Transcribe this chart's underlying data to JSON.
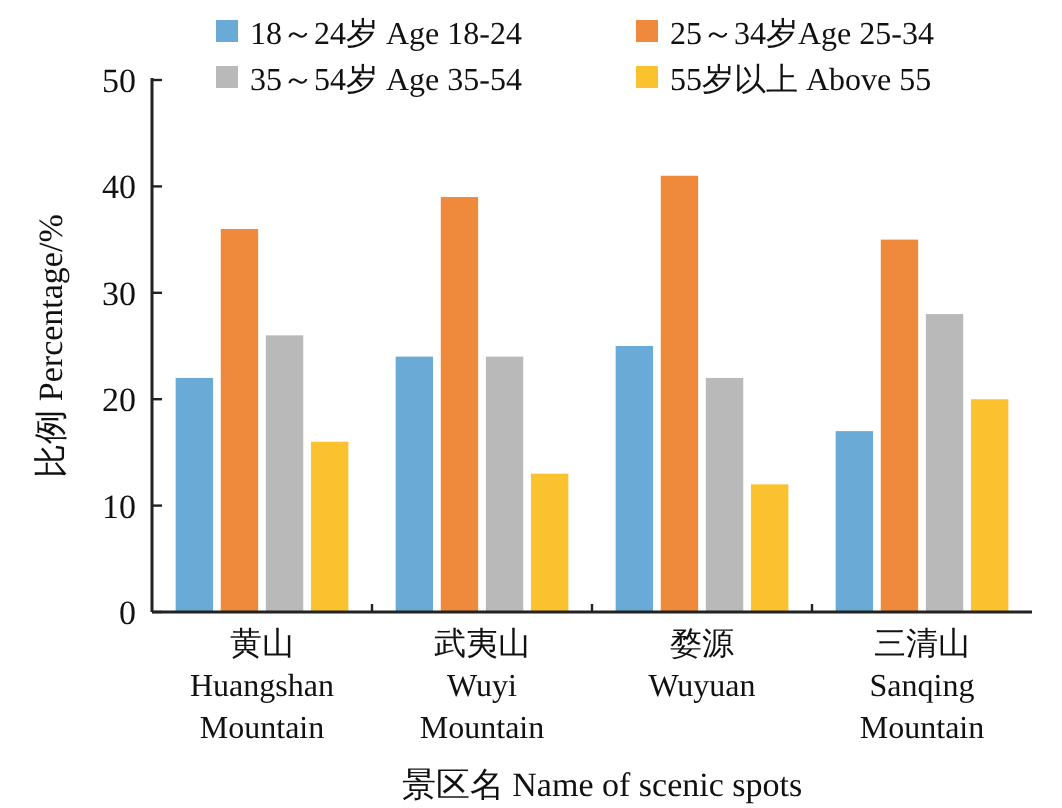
{
  "chart_data": {
    "type": "bar",
    "xlabel": "景区名 Name of scenic spots",
    "ylabel": "比例 Percentage/%",
    "categories": [
      "黄山\nHuangshan\nMountain",
      "武夷山\nWuyi\nMountain",
      "婺源\nWuyuan",
      "三清山\nSanqing\nMountain"
    ],
    "series": [
      {
        "name": "18～24岁 Age 18-24",
        "color": "#6aaad6",
        "values": [
          22,
          24,
          25,
          17
        ]
      },
      {
        "name": "25～34岁Age 25-34",
        "color": "#ef8a3c",
        "values": [
          36,
          39,
          41,
          35
        ]
      },
      {
        "name": "35～54岁  Age 35-54",
        "color": "#b9b9b9",
        "values": [
          26,
          24,
          22,
          28
        ]
      },
      {
        "name": "55岁以上 Above 55",
        "color": "#f9c22e",
        "values": [
          16,
          13,
          12,
          20
        ]
      }
    ],
    "ylim": [
      0,
      50
    ],
    "yticks": [
      0,
      10,
      20,
      30,
      40,
      50
    ],
    "legend": "top",
    "grid": false
  }
}
